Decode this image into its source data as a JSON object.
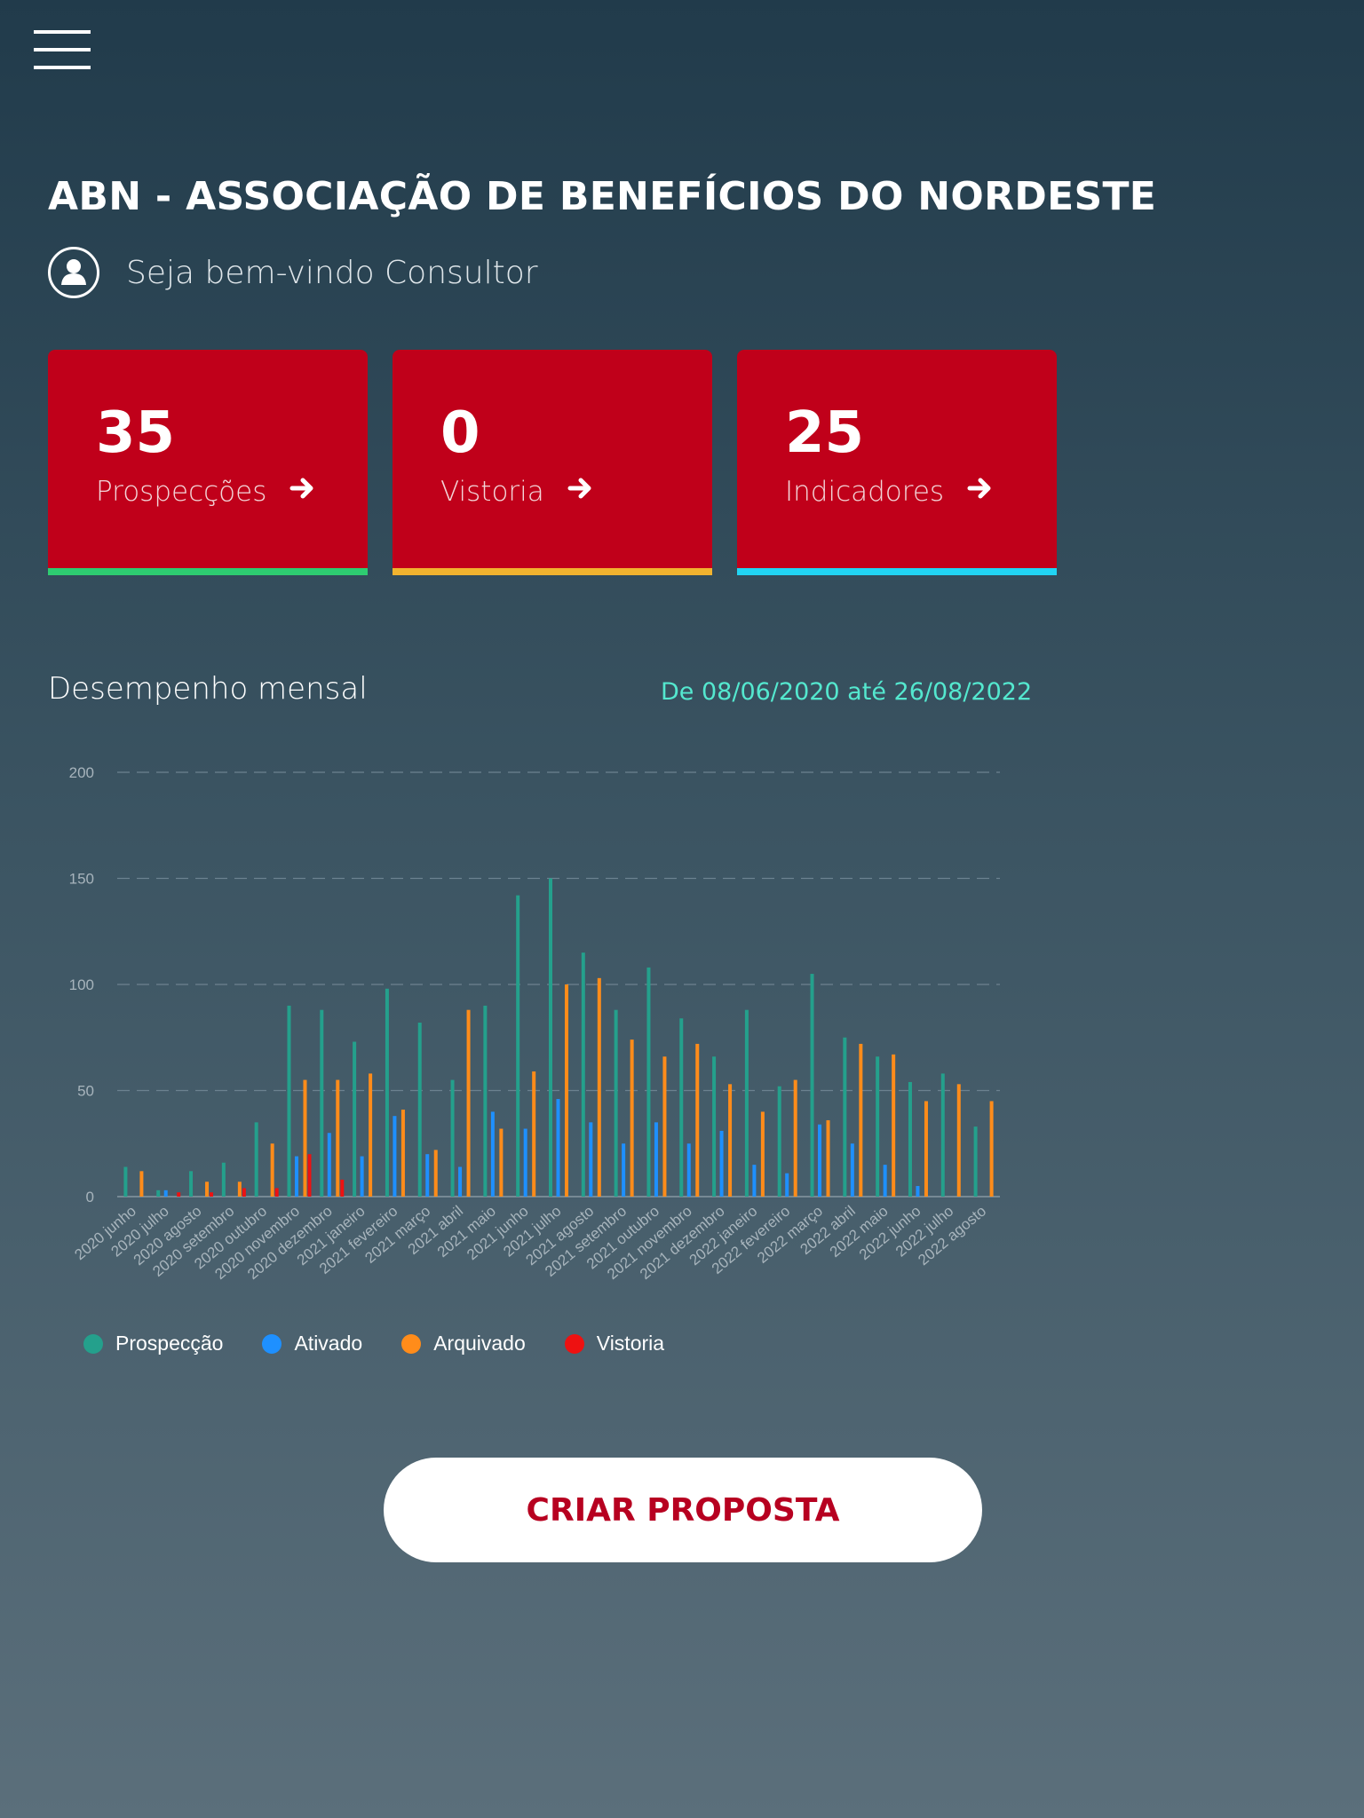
{
  "header": {
    "menu_icon": "hamburger-menu-icon"
  },
  "org": {
    "title": "ABN - ASSOCIAÇÃO DE BENEFÍCIOS DO NORDESTE"
  },
  "welcome": {
    "text": "Seja bem-vindo Consultor",
    "icon": "user-avatar-icon"
  },
  "cards": [
    {
      "value": "35",
      "label": "Prospecções",
      "accent": "#2ecc71",
      "icon": "arrow-right-icon"
    },
    {
      "value": "0",
      "label": "Vistoria",
      "accent": "#f1b32f",
      "icon": "arrow-right-icon"
    },
    {
      "value": "25",
      "label": "Indicadores",
      "accent": "#21d4f3",
      "icon": "arrow-right-icon"
    }
  ],
  "performance": {
    "title": "Desempenho mensal",
    "date_range": "De 08/06/2020 até 26/08/2022"
  },
  "chart_data": {
    "type": "bar",
    "ylim": [
      0,
      200
    ],
    "yticks": [
      0,
      50,
      100,
      150,
      200
    ],
    "grid": true,
    "legend_position": "bottom-left",
    "categories": [
      "2020 junho",
      "2020 julho",
      "2020 agosto",
      "2020 setembro",
      "2020 outubro",
      "2020 novembro",
      "2020 dezembro",
      "2021 janeiro",
      "2021 fevereiro",
      "2021 março",
      "2021 abril",
      "2021 maio",
      "2021 junho",
      "2021 julho",
      "2021 agosto",
      "2021 setembro",
      "2021 outubro",
      "2021 novembro",
      "2021 dezembro",
      "2022 janeiro",
      "2022 fevereiro",
      "2022 março",
      "2022 abril",
      "2022 maio",
      "2022 junho",
      "2022 julho",
      "2022 agosto"
    ],
    "series": [
      {
        "name": "Prospecção",
        "color": "#24a08c",
        "values": [
          14,
          3,
          12,
          16,
          35,
          90,
          88,
          73,
          98,
          82,
          55,
          90,
          142,
          150,
          115,
          88,
          108,
          84,
          66,
          88,
          52,
          105,
          75,
          66,
          54,
          58,
          33
        ]
      },
      {
        "name": "Ativado",
        "color": "#1e90ff",
        "values": [
          0,
          3,
          0,
          0,
          0,
          19,
          30,
          19,
          38,
          20,
          14,
          40,
          32,
          46,
          35,
          25,
          35,
          25,
          31,
          15,
          11,
          34,
          25,
          15,
          5,
          0,
          0
        ]
      },
      {
        "name": "Arquivado",
        "color": "#ff8c1a",
        "values": [
          12,
          0,
          7,
          7,
          25,
          55,
          55,
          58,
          41,
          22,
          88,
          32,
          59,
          100,
          103,
          74,
          66,
          72,
          53,
          40,
          55,
          36,
          72,
          67,
          45,
          53,
          45
        ]
      },
      {
        "name": "Vistoria",
        "color": "#ee1111",
        "values": [
          0,
          2,
          2,
          4,
          4,
          20,
          8,
          0,
          0,
          0,
          0,
          0,
          0,
          0,
          0,
          0,
          0,
          0,
          0,
          0,
          0,
          0,
          0,
          0,
          0,
          0,
          0
        ]
      }
    ]
  },
  "cta": {
    "label": "CRIAR PROPOSTA"
  }
}
